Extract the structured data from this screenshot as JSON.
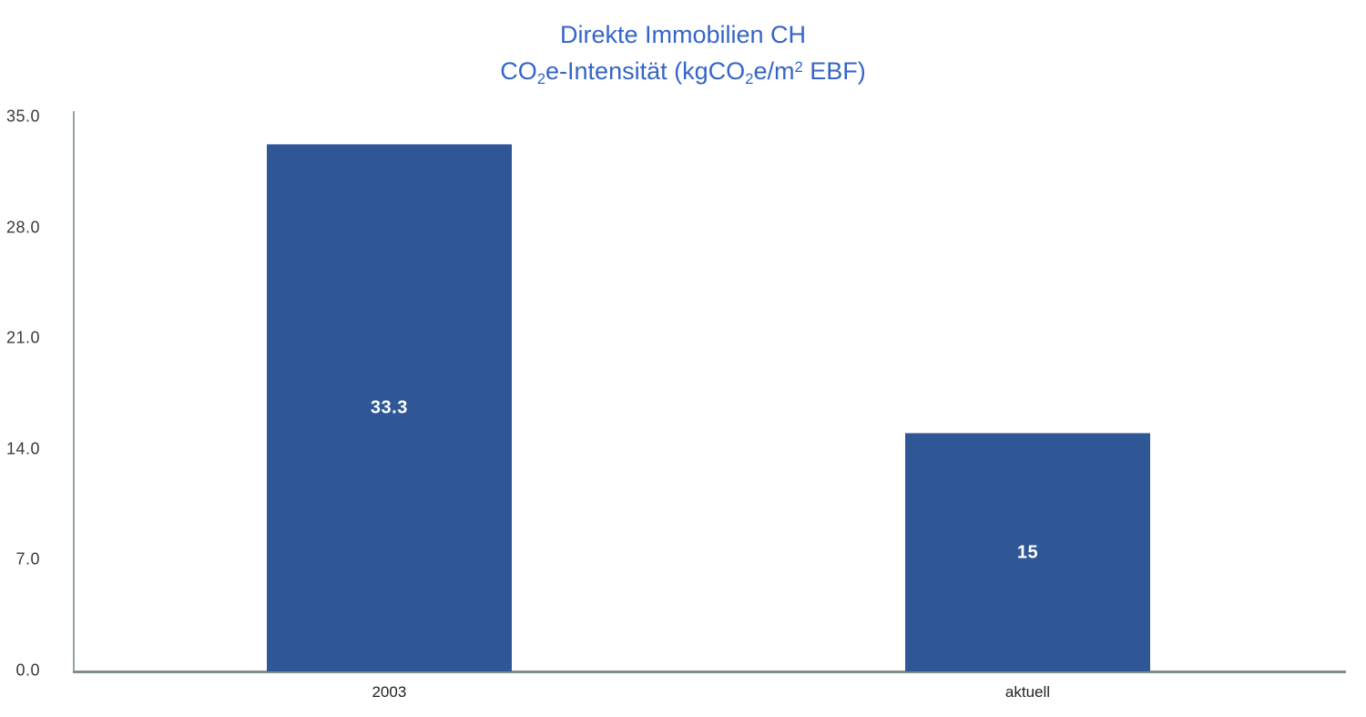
{
  "title": {
    "line1": "Direkte Immobilien CH",
    "line2_segments": [
      {
        "t": "CO"
      },
      {
        "t": "2",
        "v": "sub"
      },
      {
        "t": "e-Intensität (kgCO"
      },
      {
        "t": "2",
        "v": "sub"
      },
      {
        "t": "e/m"
      },
      {
        "t": "2",
        "v": "sup"
      },
      {
        "t": " EBF)"
      }
    ]
  },
  "chart_data": {
    "type": "bar",
    "title": "Direkte Immobilien CH",
    "subtitle": "CO2e-Intensität (kgCO2e/m2 EBF)",
    "categories": [
      "2003",
      "aktuell"
    ],
    "values": [
      33.3,
      15
    ],
    "value_labels": [
      "33.3",
      "15"
    ],
    "xlabel": "",
    "ylabel": "",
    "ylim": [
      0,
      35
    ],
    "yticks": [
      {
        "value": 35,
        "label": "35.0"
      },
      {
        "value": 28,
        "label": "28.0"
      },
      {
        "value": 21,
        "label": "21.0"
      },
      {
        "value": 14,
        "label": "14.0"
      },
      {
        "value": 7,
        "label": "7.0"
      },
      {
        "value": 0,
        "label": "0.0"
      }
    ],
    "grid": false,
    "legend": false,
    "bar_color": "#2f5796",
    "value_label_color": "#ffffff",
    "title_color": "#3565c8",
    "axis_line_color": "#8a9b9b"
  }
}
